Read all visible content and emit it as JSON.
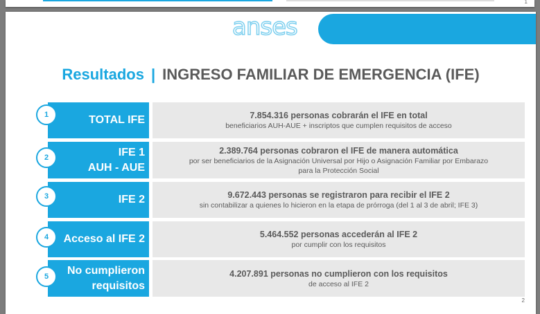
{
  "prev_slide": {
    "page_number": "1"
  },
  "slide": {
    "logo": "anses",
    "title_prefix": "Resultados",
    "title_separator": "|",
    "title": "INGRESO FAMILIAR DE EMERGENCIA (IFE)",
    "page_number": "2",
    "rows": [
      {
        "number": "1",
        "label_lines": [
          "TOTAL IFE"
        ],
        "main": "7.854.316 personas cobrarán el IFE en total",
        "sub": [
          "beneficiarios AUH-AUE + inscriptos que cumplen requisitos de acceso"
        ]
      },
      {
        "number": "2",
        "label_lines": [
          "IFE 1",
          "AUH - AUE"
        ],
        "main": "2.389.764 personas cobraron el IFE de manera automática",
        "sub": [
          "por ser beneficiarios de la Asignación Universal por Hijo o Asignación Familiar por Embarazo",
          "para la Protección Social"
        ]
      },
      {
        "number": "3",
        "label_lines": [
          "IFE 2"
        ],
        "main": "9.672.443 personas se registraron para recibir el IFE 2",
        "sub": [
          "sin contabilizar a quienes lo hicieron en la etapa de prórroga (del 1 al 3 de abril; IFE 3)"
        ]
      },
      {
        "number": "4",
        "label_lines": [
          "Acceso al IFE 2"
        ],
        "main": "5.464.552 personas accederán al IFE 2",
        "sub": [
          "por cumplir con los requisitos"
        ]
      },
      {
        "number": "5",
        "label_lines": [
          "No cumplieron",
          "requisitos"
        ],
        "main": "4.207.891 personas no cumplieron con los requisitos",
        "sub": [
          "de acceso al IFE 2"
        ]
      }
    ]
  },
  "colors": {
    "accent": "#1aa7e0",
    "content_bg": "#e8e8e8",
    "text": "#5a5a5a"
  }
}
